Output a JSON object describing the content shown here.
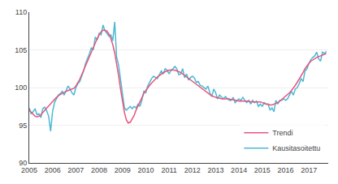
{
  "chart_data": {
    "type": "line",
    "x": [
      2005.0,
      2005.083,
      2005.167,
      2005.25,
      2005.333,
      2005.417,
      2005.5,
      2005.583,
      2005.667,
      2005.75,
      2005.833,
      2005.917,
      2006.0,
      2006.083,
      2006.167,
      2006.25,
      2006.333,
      2006.417,
      2006.5,
      2006.583,
      2006.667,
      2006.75,
      2006.833,
      2006.917,
      2007.0,
      2007.083,
      2007.167,
      2007.25,
      2007.333,
      2007.417,
      2007.5,
      2007.583,
      2007.667,
      2007.75,
      2007.833,
      2007.917,
      2008.0,
      2008.083,
      2008.167,
      2008.25,
      2008.333,
      2008.417,
      2008.5,
      2008.583,
      2008.667,
      2008.75,
      2008.833,
      2008.917,
      2009.0,
      2009.083,
      2009.167,
      2009.25,
      2009.333,
      2009.417,
      2009.5,
      2009.583,
      2009.667,
      2009.75,
      2009.833,
      2009.917,
      2010.0,
      2010.083,
      2010.167,
      2010.25,
      2010.333,
      2010.417,
      2010.5,
      2010.583,
      2010.667,
      2010.75,
      2010.833,
      2010.917,
      2011.0,
      2011.083,
      2011.167,
      2011.25,
      2011.333,
      2011.417,
      2011.5,
      2011.583,
      2011.667,
      2011.75,
      2011.833,
      2011.917,
      2012.0,
      2012.083,
      2012.167,
      2012.25,
      2012.333,
      2012.417,
      2012.5,
      2012.583,
      2012.667,
      2012.75,
      2012.833,
      2012.917,
      2013.0,
      2013.083,
      2013.167,
      2013.25,
      2013.333,
      2013.417,
      2013.5,
      2013.583,
      2013.667,
      2013.75,
      2013.833,
      2013.917,
      2014.0,
      2014.083,
      2014.167,
      2014.25,
      2014.333,
      2014.417,
      2014.5,
      2014.583,
      2014.667,
      2014.75,
      2014.833,
      2014.917,
      2015.0,
      2015.083,
      2015.167,
      2015.25,
      2015.333,
      2015.417,
      2015.5,
      2015.583,
      2015.667,
      2015.75,
      2015.833,
      2015.917,
      2016.0,
      2016.083,
      2016.167,
      2016.25,
      2016.333,
      2016.417,
      2016.5,
      2016.583,
      2016.667,
      2016.75,
      2016.833,
      2016.917,
      2017.0,
      2017.083,
      2017.167,
      2017.25,
      2017.333,
      2017.417,
      2017.5,
      2017.583,
      2017.667,
      2017.75
    ],
    "series": [
      {
        "name": "Kausitasoitettu",
        "color": "#4db8d4",
        "values": [
          97.3,
          96.5,
          96.8,
          97.2,
          96.4,
          96.5,
          96.0,
          97.2,
          97.4,
          96.9,
          96.2,
          94.2,
          96.8,
          98.0,
          98.5,
          99.0,
          99.2,
          99.5,
          99.0,
          99.6,
          100.2,
          99.8,
          99.3,
          99.0,
          100.0,
          100.5,
          100.8,
          101.5,
          102.2,
          103.2,
          103.8,
          104.5,
          105.3,
          105.0,
          106.7,
          106.3,
          107.2,
          107.0,
          108.3,
          107.5,
          107.2,
          106.8,
          107.0,
          106.2,
          108.7,
          104.0,
          103.0,
          101.0,
          99.2,
          97.3,
          97.0,
          97.2,
          97.5,
          97.2,
          97.5,
          97.3,
          97.8,
          97.5,
          98.3,
          99.5,
          99.3,
          100.2,
          100.8,
          101.2,
          101.5,
          101.3,
          101.2,
          101.7,
          102.2,
          101.8,
          102.5,
          102.3,
          101.8,
          102.3,
          102.5,
          102.8,
          102.5,
          101.7,
          101.8,
          102.5,
          101.3,
          101.8,
          101.0,
          101.3,
          101.5,
          101.3,
          100.7,
          100.8,
          100.3,
          100.2,
          100.0,
          99.8,
          100.2,
          99.3,
          98.8,
          99.8,
          99.3,
          98.5,
          99.0,
          98.8,
          98.5,
          98.8,
          98.5,
          98.3,
          98.3,
          98.7,
          98.0,
          98.3,
          98.5,
          98.3,
          98.7,
          98.3,
          98.0,
          98.3,
          97.8,
          98.3,
          98.0,
          98.2,
          97.5,
          97.8,
          97.5,
          98.0,
          97.8,
          97.8,
          97.0,
          97.3,
          96.8,
          98.3,
          97.8,
          98.3,
          98.3,
          98.5,
          98.3,
          98.5,
          99.0,
          99.5,
          99.0,
          99.8,
          100.0,
          100.5,
          101.2,
          100.8,
          102.2,
          102.5,
          103.2,
          103.7,
          104.0,
          104.2,
          104.7,
          103.8,
          103.5,
          104.7,
          104.5,
          104.8
        ]
      },
      {
        "name": "Trendi",
        "color": "#e8547a",
        "values": [
          97.0,
          96.7,
          96.4,
          96.2,
          96.1,
          96.2,
          96.4,
          96.7,
          97.0,
          97.3,
          97.6,
          97.9,
          98.2,
          98.5,
          98.7,
          98.9,
          99.1,
          99.2,
          99.4,
          99.5,
          99.6,
          99.7,
          99.8,
          99.9,
          100.2,
          100.6,
          101.1,
          101.7,
          102.3,
          102.9,
          103.5,
          104.1,
          104.8,
          105.4,
          106.0,
          106.5,
          107.0,
          107.4,
          107.6,
          107.6,
          107.5,
          107.1,
          106.5,
          105.7,
          104.6,
          103.2,
          101.6,
          99.8,
          98.1,
          96.7,
          95.7,
          95.3,
          95.4,
          95.8,
          96.3,
          97.0,
          97.6,
          98.2,
          98.7,
          99.2,
          99.6,
          100.0,
          100.3,
          100.6,
          100.9,
          101.2,
          101.4,
          101.6,
          101.8,
          102.0,
          102.1,
          102.2,
          102.3,
          102.3,
          102.3,
          102.3,
          102.2,
          102.1,
          102.0,
          101.8,
          101.6,
          101.4,
          101.2,
          101.0,
          100.8,
          100.6,
          100.4,
          100.2,
          100.0,
          99.8,
          99.6,
          99.4,
          99.2,
          99.0,
          98.9,
          98.8,
          98.7,
          98.6,
          98.6,
          98.5,
          98.5,
          98.5,
          98.5,
          98.5,
          98.4,
          98.4,
          98.3,
          98.3,
          98.2,
          98.2,
          98.2,
          98.2,
          98.2,
          98.2,
          98.1,
          98.1,
          98.1,
          98.1,
          98.1,
          98.1,
          98.0,
          97.9,
          97.8,
          97.8,
          97.7,
          97.7,
          97.8,
          97.9,
          98.0,
          98.2,
          98.4,
          98.6,
          98.8,
          99.0,
          99.3,
          99.6,
          99.9,
          100.3,
          100.7,
          101.1,
          101.6,
          102.0,
          102.5,
          102.9,
          103.2,
          103.5,
          103.7,
          103.9,
          104.0,
          104.1,
          104.2,
          104.3,
          104.4,
          104.5
        ]
      }
    ],
    "xlim": [
      2005.0,
      2017.83
    ],
    "xticks": [
      2005,
      2006,
      2007,
      2008,
      2009,
      2010,
      2011,
      2012,
      2013,
      2014,
      2015,
      2016,
      2017
    ],
    "ylim": [
      90,
      110
    ],
    "yticks": [
      90,
      95,
      100,
      105,
      110
    ],
    "grid": true,
    "legend": "lower right"
  }
}
